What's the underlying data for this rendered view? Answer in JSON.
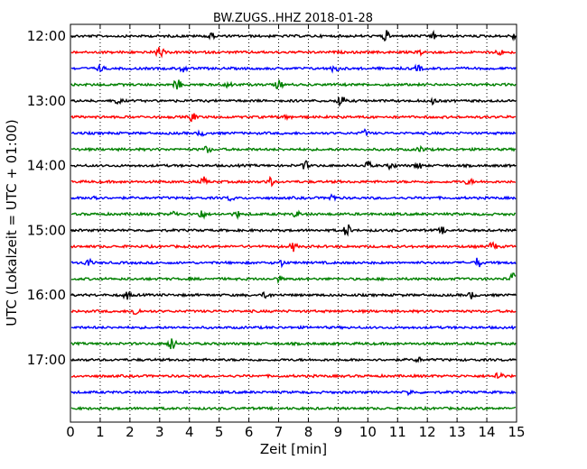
{
  "chart_data": {
    "type": "line",
    "title": "BW.ZUGS..HHZ 2018-01-28",
    "xlabel": "Zeit  [min]",
    "ylabel": "UTC (Lokalzeit = UTC + 01:00)",
    "xlim": [
      0,
      15
    ],
    "x_ticks": [
      "0",
      "1",
      "2",
      "3",
      "4",
      "5",
      "6",
      "7",
      "8",
      "9",
      "10",
      "11",
      "12",
      "13",
      "14",
      "15"
    ],
    "y_ticks": [
      {
        "label": "12:00",
        "row": 0
      },
      {
        "label": "13:00",
        "row": 4
      },
      {
        "label": "14:00",
        "row": 8
      },
      {
        "label": "15:00",
        "row": 12
      },
      {
        "label": "16:00",
        "row": 16
      },
      {
        "label": "17:00",
        "row": 20
      }
    ],
    "grid": "vertical dotted at each minute",
    "row_colors": [
      "#000000",
      "#ff0000",
      "#0000ff",
      "#008000"
    ],
    "series": [
      {
        "start": "12:00",
        "events": [
          [
            4.7,
            2.0
          ],
          [
            10.6,
            2.6
          ],
          [
            12.2,
            1.6
          ],
          [
            14.9,
            1.5
          ]
        ]
      },
      {
        "start": "12:15",
        "events": [
          [
            3.0,
            2.8
          ],
          [
            11.8,
            1.2
          ],
          [
            14.4,
            1.6
          ]
        ]
      },
      {
        "start": "12:30",
        "events": [
          [
            1.0,
            1.4
          ],
          [
            3.8,
            1.6
          ],
          [
            8.9,
            2.0
          ],
          [
            11.7,
            1.4
          ]
        ]
      },
      {
        "start": "12:45",
        "events": [
          [
            3.6,
            2.6
          ],
          [
            5.3,
            1.5
          ],
          [
            7.0,
            2.0
          ]
        ]
      },
      {
        "start": "13:00",
        "events": [
          [
            1.6,
            1.2
          ],
          [
            9.1,
            3.4
          ],
          [
            12.2,
            1.6
          ]
        ]
      },
      {
        "start": "13:15",
        "events": [
          [
            4.1,
            2.2
          ],
          [
            7.3,
            1.2
          ]
        ]
      },
      {
        "start": "13:30",
        "events": [
          [
            4.4,
            1.2
          ],
          [
            9.9,
            1.3
          ]
        ]
      },
      {
        "start": "13:45",
        "events": [
          [
            4.6,
            1.6
          ],
          [
            11.8,
            1.3
          ]
        ]
      },
      {
        "start": "14:00",
        "events": [
          [
            7.9,
            2.0
          ],
          [
            10.0,
            2.0
          ],
          [
            10.8,
            1.8
          ],
          [
            11.7,
            1.6
          ]
        ]
      },
      {
        "start": "14:15",
        "events": [
          [
            4.5,
            2.0
          ],
          [
            6.7,
            2.2
          ],
          [
            13.4,
            1.4
          ]
        ]
      },
      {
        "start": "14:30",
        "events": [
          [
            0.8,
            1.8
          ],
          [
            5.4,
            1.2
          ],
          [
            8.8,
            1.6
          ]
        ]
      },
      {
        "start": "14:45",
        "events": [
          [
            3.5,
            1.4
          ],
          [
            4.4,
            2.4
          ],
          [
            5.6,
            1.4
          ],
          [
            7.6,
            1.4
          ]
        ]
      },
      {
        "start": "15:00",
        "events": [
          [
            9.3,
            3.4
          ],
          [
            12.5,
            1.4
          ]
        ]
      },
      {
        "start": "15:15",
        "events": [
          [
            7.5,
            2.0
          ],
          [
            14.2,
            2.2
          ]
        ]
      },
      {
        "start": "15:30",
        "events": [
          [
            0.6,
            1.8
          ],
          [
            7.1,
            1.4
          ],
          [
            13.7,
            2.4
          ]
        ]
      },
      {
        "start": "15:45",
        "events": [
          [
            7.0,
            1.2
          ],
          [
            14.9,
            3.0
          ]
        ]
      },
      {
        "start": "16:00",
        "events": [
          [
            1.9,
            1.8
          ],
          [
            6.6,
            1.8
          ],
          [
            13.5,
            1.6
          ]
        ]
      },
      {
        "start": "16:15",
        "events": [
          [
            2.2,
            2.4
          ]
        ]
      },
      {
        "start": "16:30",
        "events": []
      },
      {
        "start": "16:45",
        "events": [
          [
            3.4,
            3.6
          ]
        ]
      },
      {
        "start": "17:00",
        "events": [
          [
            11.7,
            1.0
          ]
        ]
      },
      {
        "start": "17:15",
        "events": [
          [
            14.4,
            2.8
          ]
        ]
      },
      {
        "start": "17:30",
        "events": [
          [
            11.4,
            1.2
          ]
        ]
      },
      {
        "start": "17:45",
        "events": []
      }
    ]
  }
}
